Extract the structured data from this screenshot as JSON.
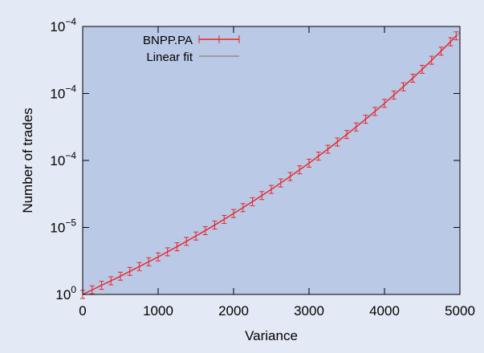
{
  "colors": {
    "page_background": "#e3eaf5",
    "plot_background": "#b9c9e6",
    "series_color": "#e8262b",
    "fit_color": "#8f8f8f",
    "frame_color": "#000000"
  },
  "chart_data": {
    "type": "line",
    "xlabel": "Variance",
    "ylabel": "Number of trades",
    "xlim": [
      0,
      5000
    ],
    "x_ticks": [
      0,
      1000,
      2000,
      3000,
      4000,
      5000
    ],
    "y_ticks": [
      {
        "base": "10",
        "exp": "0"
      },
      {
        "base": "10",
        "exp": "−5"
      },
      {
        "base": "10",
        "exp": "−4"
      },
      {
        "base": "10",
        "exp": "−4"
      },
      {
        "base": "10",
        "exp": "−4"
      }
    ],
    "grid": false,
    "legend_position": "top-left",
    "series": [
      {
        "name": "BNPP.PA",
        "style": "line with error bars",
        "x": [
          0,
          125,
          250,
          375,
          500,
          625,
          750,
          875,
          1000,
          1125,
          1250,
          1375,
          1500,
          1625,
          1750,
          1875,
          2000,
          2125,
          2250,
          2375,
          2500,
          2625,
          2750,
          2875,
          3000,
          3125,
          3250,
          3375,
          3500,
          3625,
          3750,
          3875,
          4000,
          4125,
          4250,
          4375,
          4500,
          4625,
          4750,
          4875,
          4950
        ],
        "y": [
          0.0,
          0.017,
          0.034,
          0.051,
          0.068,
          0.086,
          0.104,
          0.122,
          0.14,
          0.159,
          0.178,
          0.198,
          0.218,
          0.238,
          0.259,
          0.28,
          0.302,
          0.324,
          0.346,
          0.369,
          0.392,
          0.416,
          0.44,
          0.465,
          0.49,
          0.516,
          0.542,
          0.569,
          0.597,
          0.625,
          0.654,
          0.683,
          0.713,
          0.744,
          0.775,
          0.807,
          0.84,
          0.874,
          0.908,
          0.943,
          0.965
        ]
      },
      {
        "name": "Linear fit",
        "style": "line",
        "x": [
          0,
          500,
          1000,
          1500,
          2000,
          2500,
          3000,
          3500,
          4000,
          4500,
          5000
        ],
        "y": [
          0.0,
          0.068,
          0.14,
          0.218,
          0.302,
          0.392,
          0.49,
          0.597,
          0.713,
          0.84,
          0.978
        ]
      }
    ]
  }
}
